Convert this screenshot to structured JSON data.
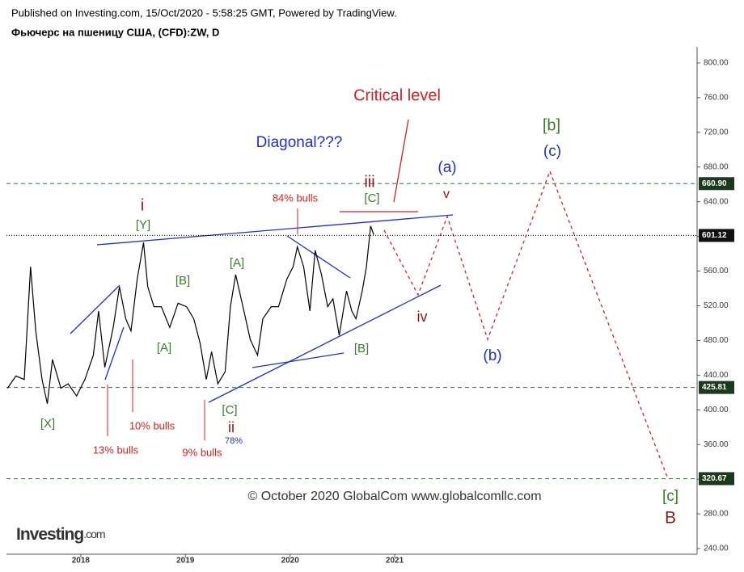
{
  "header": {
    "published": "Published on Investing.com, 15/Oct/2020 - 5:58:25 GMT, Powered by TradingView.",
    "symbol": "Фьючерс на пшеницу США, (CFD):ZW, D"
  },
  "watermark": "© October 2020 GlobalCom www.globalcomllc.com",
  "logo": {
    "brand": "Investing",
    "suffix": ".com"
  },
  "chart_data": {
    "type": "line",
    "series": [
      {
        "name": "ZW",
        "color": "#000000",
        "x": [
          2017.3,
          2017.38,
          2017.46,
          2017.52,
          2017.57,
          2017.63,
          2017.68,
          2017.73,
          2017.81,
          2017.88,
          2017.96,
          2018.04,
          2018.12,
          2018.17,
          2018.23,
          2018.31,
          2018.37,
          2018.43,
          2018.48,
          2018.54,
          2018.6,
          2018.64,
          2018.7,
          2018.77,
          2018.85,
          2018.93,
          2019.01,
          2019.08,
          2019.14,
          2019.2,
          2019.25,
          2019.31,
          2019.38,
          2019.43,
          2019.48,
          2019.55,
          2019.62,
          2019.69,
          2019.74,
          2019.82,
          2019.89,
          2019.97,
          2020.03,
          2020.07,
          2020.13,
          2020.19,
          2020.24,
          2020.3,
          2020.36,
          2020.41,
          2020.47,
          2020.54,
          2020.59,
          2020.63,
          2020.69,
          2020.73,
          2020.77,
          2020.8
        ],
        "values": [
          425,
          439,
          435,
          565,
          491,
          435,
          407,
          458,
          425,
          430,
          416,
          435,
          463,
          514,
          449,
          495,
          542,
          505,
          491,
          551,
          593,
          542,
          519,
          519,
          495,
          523,
          519,
          505,
          477,
          435,
          467,
          430,
          444,
          519,
          556,
          519,
          481,
          463,
          505,
          519,
          519,
          551,
          565,
          588,
          565,
          514,
          584,
          556,
          519,
          528,
          486,
          537,
          514,
          505,
          537,
          565,
          612,
          602
        ]
      }
    ],
    "xlim": [
      2017.29,
      2023.89
    ],
    "xticks": [
      2018,
      2019,
      2020,
      2021
    ],
    "ylim": [
      233.5,
      818.6
    ],
    "yticks": [
      {
        "value": 240,
        "label": "240.00"
      },
      {
        "value": 280,
        "label": "280.00"
      },
      {
        "value": 320,
        "label": "320.00"
      },
      {
        "value": 360,
        "label": "360.00"
      },
      {
        "value": 400,
        "label": "400.00"
      },
      {
        "value": 440,
        "label": "440.00"
      },
      {
        "value": 480,
        "label": "480.00"
      },
      {
        "value": 520,
        "label": "520.00"
      },
      {
        "value": 560,
        "label": "560.00"
      },
      {
        "value": 600,
        "label": "600.00"
      },
      {
        "value": 640,
        "label": "640.00"
      },
      {
        "value": 680,
        "label": "680.00"
      },
      {
        "value": 720,
        "label": "720.00"
      },
      {
        "value": 760,
        "label": "760.00"
      },
      {
        "value": 800,
        "label": "800.00"
      }
    ],
    "levels": [
      {
        "value": 660.9,
        "label": "660.90",
        "color": "#2e7d32",
        "style": "dashed",
        "box": "#1b3a1b"
      },
      {
        "value": 601.12,
        "label": "601.12",
        "color": "#000000",
        "style": "dotted",
        "box": "#111111"
      },
      {
        "value": 425.81,
        "label": "425.81",
        "color": "#2e7d32",
        "style": "dashed",
        "box": "#1b3a1b"
      },
      {
        "value": 320.67,
        "label": "320.67",
        "color": "#2e7d32",
        "style": "dashed",
        "box": "#1b3a1b"
      }
    ],
    "annotations": [
      {
        "text": "Critical level",
        "color": "#d62020"
      },
      {
        "text": "Diagonal???",
        "color": "#1f2fd0"
      },
      {
        "text": "[b]",
        "color": "#3a7d2a"
      },
      {
        "text": "(c)",
        "color": "#1f2fd0"
      },
      {
        "text": "(a)",
        "color": "#1f2fd0"
      },
      {
        "text": "iii",
        "color": "#8b1a1a"
      },
      {
        "text": "[C]",
        "color": "#3a7d2a"
      },
      {
        "text": "v",
        "color": "#8b1a1a"
      },
      {
        "text": "84% bulls",
        "color": "#d62020"
      },
      {
        "text": "i",
        "color": "#8b1a1a"
      },
      {
        "text": "[Y]",
        "color": "#3a7d2a"
      },
      {
        "text": "[A]",
        "color": "#3a7d2a"
      },
      {
        "text": "[B]",
        "color": "#3a7d2a"
      },
      {
        "text": "[A]",
        "color": "#3a7d2a"
      },
      {
        "text": "[B]",
        "color": "#3a7d2a"
      },
      {
        "text": "iv",
        "color": "#8b1a1a"
      },
      {
        "text": "(b)",
        "color": "#1f2fd0"
      },
      {
        "text": "[X]",
        "color": "#3a7d2a"
      },
      {
        "text": "13% bulls",
        "color": "#d62020"
      },
      {
        "text": "10% bulls",
        "color": "#d62020"
      },
      {
        "text": "9% bulls",
        "color": "#d62020"
      },
      {
        "text": "[C]",
        "color": "#3a7d2a"
      },
      {
        "text": "ii",
        "color": "#8b1a1a"
      },
      {
        "text": "78%",
        "color": "#1f2fd0"
      },
      {
        "text": "[c]",
        "color": "#3a7d2a"
      },
      {
        "text": "B",
        "color": "#8b1a1a"
      }
    ]
  }
}
